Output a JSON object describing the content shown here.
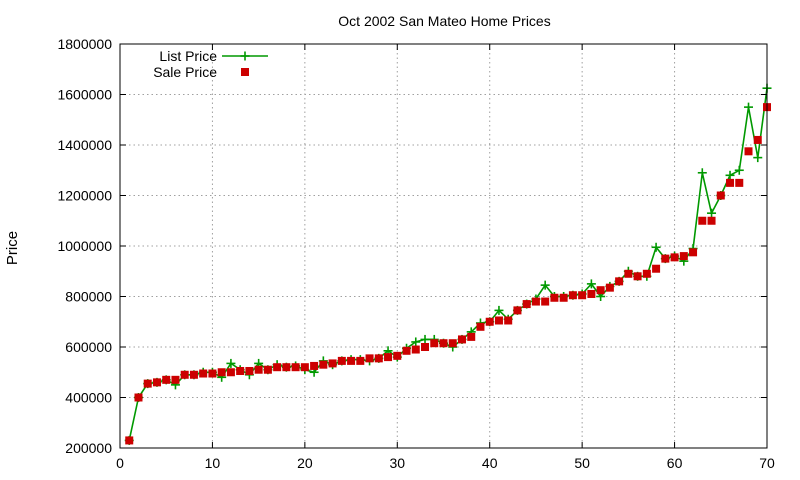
{
  "chart_data": {
    "type": "line",
    "title": "Oct 2002 San Mateo Home Prices",
    "xlabel": "",
    "ylabel": "Price",
    "xlim": [
      0,
      70
    ],
    "ylim": [
      200000,
      1800000
    ],
    "x_ticks": [
      "0",
      "10",
      "20",
      "30",
      "40",
      "50",
      "60",
      "70"
    ],
    "y_ticks": [
      "200000",
      "400000",
      "600000",
      "800000",
      "1000000",
      "1200000",
      "1400000",
      "1600000",
      "1800000"
    ],
    "grid": true,
    "legend_position": "top-left",
    "colors": {
      "list": "#009900",
      "sale": "#cc0000"
    },
    "series": [
      {
        "name": "List Price",
        "style": "line-plus",
        "x": [
          1,
          2,
          3,
          4,
          5,
          6,
          7,
          8,
          9,
          10,
          11,
          12,
          13,
          14,
          15,
          16,
          17,
          18,
          19,
          20,
          21,
          22,
          23,
          24,
          25,
          26,
          27,
          28,
          29,
          30,
          31,
          32,
          33,
          34,
          35,
          36,
          37,
          38,
          39,
          40,
          41,
          42,
          43,
          44,
          45,
          46,
          47,
          48,
          49,
          50,
          51,
          52,
          53,
          54,
          55,
          56,
          57,
          58,
          59,
          60,
          61,
          62,
          63,
          64,
          65,
          66,
          67,
          68,
          69,
          70
        ],
        "values": [
          230000,
          400000,
          455000,
          460000,
          470000,
          450000,
          490000,
          490000,
          500000,
          500000,
          480000,
          535000,
          510000,
          490000,
          535000,
          510000,
          530000,
          520000,
          525000,
          510000,
          500000,
          545000,
          530000,
          545000,
          550000,
          550000,
          545000,
          555000,
          585000,
          560000,
          595000,
          620000,
          630000,
          630000,
          615000,
          600000,
          630000,
          660000,
          695000,
          700000,
          745000,
          710000,
          745000,
          770000,
          790000,
          845000,
          800000,
          800000,
          805000,
          810000,
          850000,
          800000,
          840000,
          860000,
          900000,
          880000,
          880000,
          995000,
          950000,
          960000,
          940000,
          990000,
          1290000,
          1130000,
          1200000,
          1280000,
          1300000,
          1550000,
          1350000,
          1625000
        ]
      },
      {
        "name": "Sale Price",
        "style": "square-points",
        "x": [
          1,
          2,
          3,
          4,
          5,
          6,
          7,
          8,
          9,
          10,
          11,
          12,
          13,
          14,
          15,
          16,
          17,
          18,
          19,
          20,
          21,
          22,
          23,
          24,
          25,
          26,
          27,
          28,
          29,
          30,
          31,
          32,
          33,
          34,
          35,
          36,
          37,
          38,
          39,
          40,
          41,
          42,
          43,
          44,
          45,
          46,
          47,
          48,
          49,
          50,
          51,
          52,
          53,
          54,
          55,
          56,
          57,
          58,
          59,
          60,
          61,
          62,
          63,
          64,
          65,
          66,
          67,
          68,
          69,
          70
        ],
        "values": [
          230000,
          400000,
          455000,
          460000,
          470000,
          470000,
          490000,
          490000,
          495000,
          495000,
          500000,
          500000,
          505000,
          505000,
          510000,
          510000,
          520000,
          520000,
          520000,
          520000,
          525000,
          530000,
          535000,
          545000,
          545000,
          545000,
          555000,
          555000,
          560000,
          565000,
          585000,
          590000,
          600000,
          615000,
          615000,
          615000,
          630000,
          640000,
          680000,
          700000,
          705000,
          705000,
          745000,
          770000,
          780000,
          780000,
          795000,
          795000,
          805000,
          805000,
          810000,
          825000,
          835000,
          860000,
          890000,
          880000,
          890000,
          910000,
          950000,
          955000,
          960000,
          975000,
          1100000,
          1100000,
          1200000,
          1250000,
          1250000,
          1375000,
          1420000,
          1550000
        ]
      }
    ]
  }
}
